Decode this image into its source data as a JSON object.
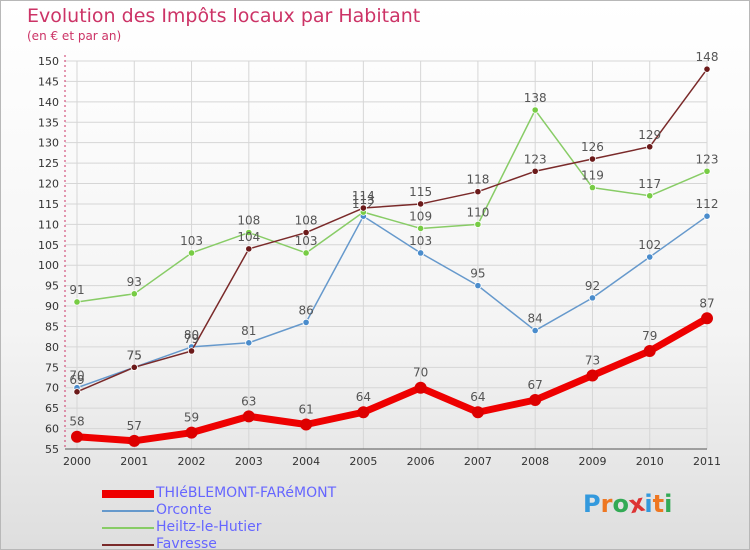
{
  "title": "Evolution des Impôts locaux par Habitant",
  "subtitle": "(en € et par an)",
  "logo_text": "Proxiti",
  "colors": {
    "title": "#cc3366",
    "legend_text": "#6666ff",
    "grid": "#d6d6d6",
    "axis_text": "#333333",
    "data_label": "#555555"
  },
  "chart_data": {
    "type": "line",
    "x": [
      "2000",
      "2001",
      "2002",
      "2003",
      "2004",
      "2005",
      "2006",
      "2007",
      "2008",
      "2009",
      "2010",
      "2011"
    ],
    "ylim": [
      55,
      150
    ],
    "ytick_step": 5,
    "grid": true,
    "legend_position": "bottom-left",
    "series": [
      {
        "name": "THIéBLEMONT-FARéMONT",
        "color": "#ee0000",
        "marker": "#dd0000",
        "bold": true,
        "values": [
          58,
          57,
          59,
          63,
          61,
          64,
          70,
          64,
          67,
          73,
          79,
          87
        ]
      },
      {
        "name": "Orconte",
        "color": "#6699cc",
        "marker": "#4a8ccc",
        "bold": false,
        "values": [
          70,
          75,
          80,
          81,
          86,
          112,
          103,
          95,
          84,
          92,
          102,
          112
        ]
      },
      {
        "name": "Heiltz-le-Hutier",
        "color": "#88cc66",
        "marker": "#77cc44",
        "bold": false,
        "values": [
          91,
          93,
          103,
          108,
          103,
          113,
          109,
          110,
          138,
          119,
          117,
          123
        ]
      },
      {
        "name": "Favresse",
        "color": "#7a2a2a",
        "marker": "#6b1a1a",
        "bold": false,
        "values": [
          69,
          75,
          79,
          104,
          108,
          114,
          115,
          118,
          123,
          126,
          129,
          148
        ]
      }
    ]
  }
}
